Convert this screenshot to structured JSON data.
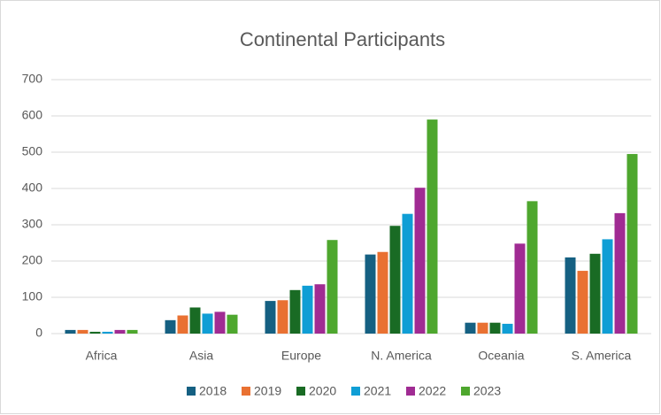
{
  "chart_data": {
    "type": "bar",
    "title": "Continental Participants",
    "categories": [
      "Africa",
      "Asia",
      "Europe",
      "N. America",
      "Oceania",
      "S. America"
    ],
    "series": [
      {
        "name": "2018",
        "color": "#156082",
        "values": [
          10,
          37,
          90,
          218,
          30,
          210
        ]
      },
      {
        "name": "2019",
        "color": "#e97132",
        "values": [
          10,
          50,
          92,
          225,
          30,
          173
        ]
      },
      {
        "name": "2020",
        "color": "#196b24",
        "values": [
          5,
          72,
          120,
          297,
          30,
          220
        ]
      },
      {
        "name": "2021",
        "color": "#0f9ed5",
        "values": [
          5,
          55,
          132,
          330,
          27,
          260
        ]
      },
      {
        "name": "2022",
        "color": "#a02b93",
        "values": [
          10,
          60,
          136,
          402,
          248,
          332
        ]
      },
      {
        "name": "2023",
        "color": "#4ea72e",
        "values": [
          10,
          52,
          258,
          590,
          365,
          495
        ]
      }
    ],
    "ylim": [
      0,
      700
    ],
    "yticks": [
      0,
      100,
      200,
      300,
      400,
      500,
      600,
      700
    ],
    "grid": true,
    "legend": "bottom"
  }
}
